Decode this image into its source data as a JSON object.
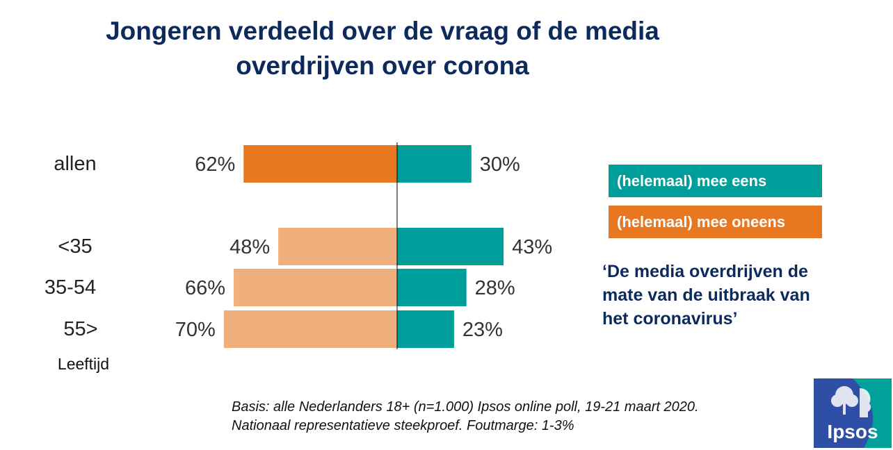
{
  "title_lines": [
    "Jongeren verdeeld over de vraag of de media",
    "overdrijven over corona"
  ],
  "legend": {
    "agree": {
      "label": "(helemaal) mee eens",
      "color": "#009e9a"
    },
    "disagree": {
      "label": "(helemaal) mee oneens",
      "color": "#e87722"
    }
  },
  "quote_lines": [
    "‘De media overdrijven de",
    "mate van de uitbraak van",
    "het coronavirus’"
  ],
  "source_lines": [
    "Basis: alle Nederlanders 18+ (n=1.000) Ipsos online poll, 19-21 maart 2020.",
    "Nationaal representatieve steekproef. Foutmarge: 1-3%"
  ],
  "logo": {
    "text": "Ipsos",
    "icon": "ipsos-tree-face-icon"
  },
  "chart_data": {
    "type": "bar",
    "orientation": "diverging-horizontal",
    "categories": [
      "allen",
      "<35",
      "35-54",
      "55>"
    ],
    "category_axis_label": "Leeftijd",
    "value_suffix": "%",
    "series": [
      {
        "name": "(helemaal) mee oneens",
        "side": "left",
        "values": [
          62,
          48,
          66,
          70
        ],
        "colors": [
          "#e87722",
          "#f0b07d",
          "#f0b07d",
          "#f0b07d"
        ]
      },
      {
        "name": "(helemaal) mee eens",
        "side": "right",
        "values": [
          30,
          43,
          28,
          23
        ],
        "colors": [
          "#009e9a",
          "#009e9a",
          "#009e9a",
          "#009e9a"
        ]
      }
    ],
    "data_labels": {
      "left": [
        "62%",
        "48%",
        "66%",
        "70%"
      ],
      "right": [
        "30%",
        "43%",
        "28%",
        "23%"
      ]
    },
    "xlim": [
      0,
      100
    ]
  }
}
